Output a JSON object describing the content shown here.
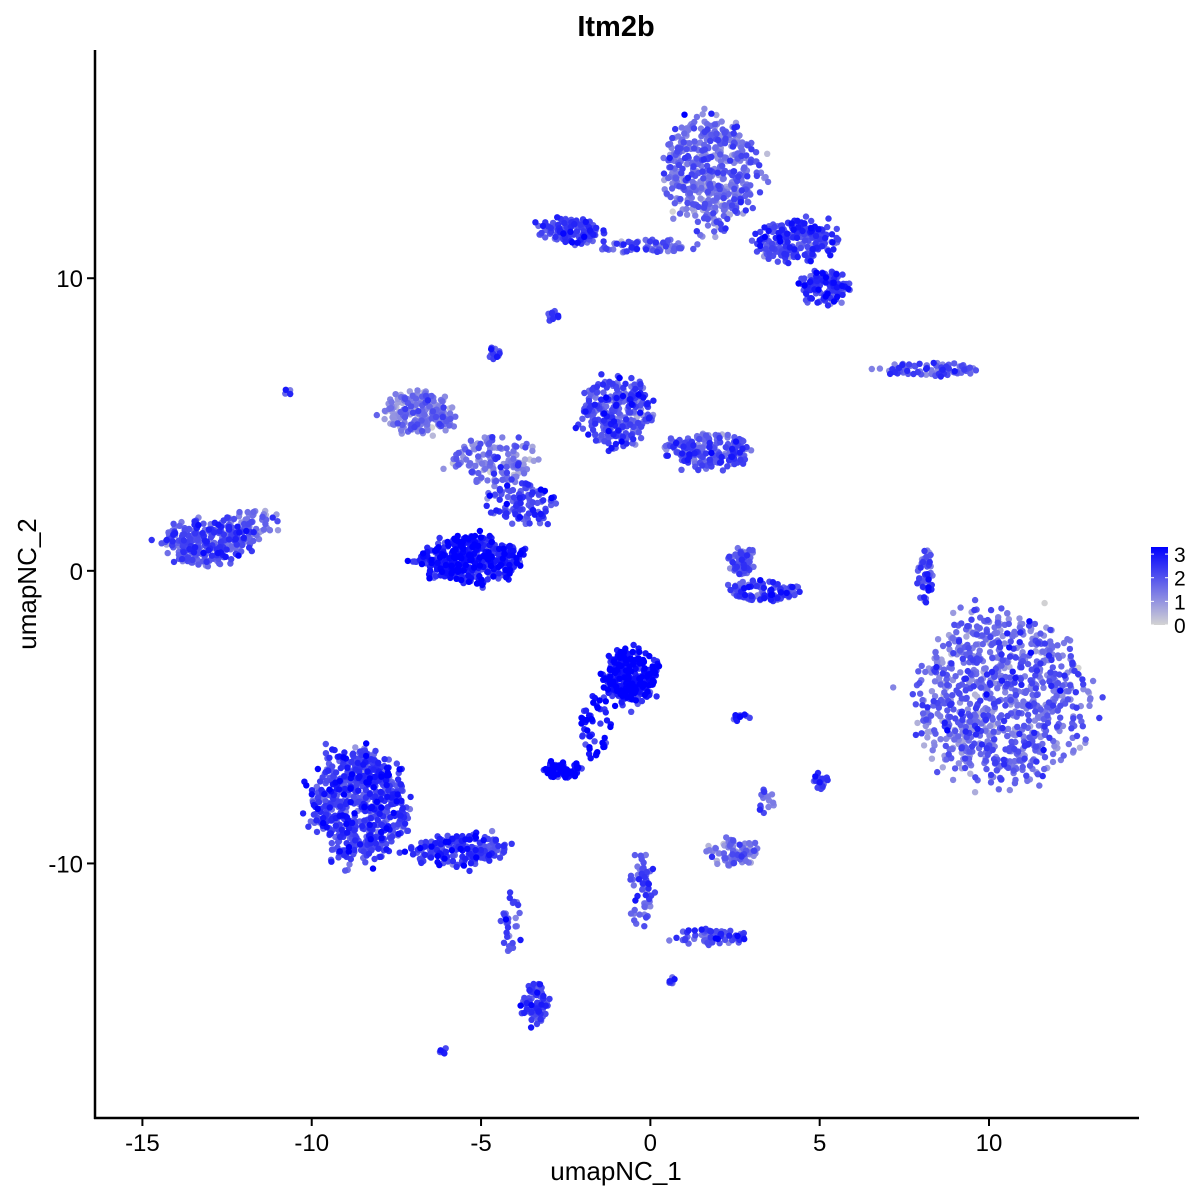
{
  "chart_data": {
    "type": "scatter",
    "title": "Itm2b",
    "xlabel": "umapNC_1",
    "ylabel": "umapNC_2",
    "xlim": [
      -16.4,
      14.4
    ],
    "ylim": [
      -18.7,
      17.8
    ],
    "xticks": [
      -15,
      -10,
      -5,
      0,
      5,
      10
    ],
    "yticks": [
      -10,
      0,
      10
    ],
    "xtick_labels": [
      "-15",
      "-10",
      "-5",
      "0",
      "5",
      "10"
    ],
    "ytick_labels": [
      "-10",
      "0",
      "10"
    ],
    "grid": false,
    "legend": {
      "placement": "right",
      "type": "colorbar",
      "low_color": "#d3d3d3",
      "high_color": "#0000ff",
      "range": [
        0,
        3.3
      ],
      "ticks": [
        0,
        1,
        2,
        3
      ],
      "tick_labels": [
        "0",
        "1",
        "2",
        "3"
      ]
    },
    "clusters": [
      {
        "cx": 1.8,
        "cy": 13.6,
        "sx": 1.2,
        "sy": 1.6,
        "n": 500,
        "expr": 1.5
      },
      {
        "cx": 4.3,
        "cy": 11.3,
        "sx": 1.0,
        "sy": 0.6,
        "n": 220,
        "expr": 2.2
      },
      {
        "cx": 5.1,
        "cy": 9.7,
        "sx": 0.6,
        "sy": 0.5,
        "n": 120,
        "expr": 2.4
      },
      {
        "cx": -2.4,
        "cy": 11.6,
        "sx": 0.8,
        "sy": 0.35,
        "n": 140,
        "expr": 2.2
      },
      {
        "cx": -0.2,
        "cy": 11.1,
        "sx": 1.3,
        "sy": 0.2,
        "n": 70,
        "expr": 1.8
      },
      {
        "cx": -2.9,
        "cy": 8.7,
        "sx": 0.15,
        "sy": 0.15,
        "n": 10,
        "expr": 2.2
      },
      {
        "cx": -6.8,
        "cy": 5.4,
        "sx": 0.9,
        "sy": 0.6,
        "n": 200,
        "expr": 1.3
      },
      {
        "cx": -4.6,
        "cy": 3.8,
        "sx": 1.0,
        "sy": 0.7,
        "n": 140,
        "expr": 1.4
      },
      {
        "cx": -1.0,
        "cy": 5.4,
        "sx": 0.9,
        "sy": 1.0,
        "n": 280,
        "expr": 2.0
      },
      {
        "cx": 1.7,
        "cy": 4.1,
        "sx": 1.1,
        "sy": 0.5,
        "n": 200,
        "expr": 1.9
      },
      {
        "cx": -4.6,
        "cy": 7.4,
        "sx": 0.15,
        "sy": 0.2,
        "n": 15,
        "expr": 2.0
      },
      {
        "cx": -5.3,
        "cy": 0.4,
        "sx": 1.3,
        "sy": 0.7,
        "n": 380,
        "expr": 2.8
      },
      {
        "cx": -3.8,
        "cy": 2.3,
        "sx": 0.9,
        "sy": 0.6,
        "n": 100,
        "expr": 2.2
      },
      {
        "cx": -13.1,
        "cy": 1.0,
        "sx": 1.1,
        "sy": 0.65,
        "n": 280,
        "expr": 2.0
      },
      {
        "cx": -11.8,
        "cy": 1.6,
        "sx": 0.7,
        "sy": 0.4,
        "n": 60,
        "expr": 1.5
      },
      {
        "cx": 2.7,
        "cy": 0.3,
        "sx": 0.3,
        "sy": 0.5,
        "n": 60,
        "expr": 1.8
      },
      {
        "cx": 3.3,
        "cy": -0.7,
        "sx": 0.9,
        "sy": 0.3,
        "n": 100,
        "expr": 2.2
      },
      {
        "cx": 10.4,
        "cy": -4.3,
        "sx": 2.1,
        "sy": 2.4,
        "n": 900,
        "expr": 1.6
      },
      {
        "cx": -0.6,
        "cy": -3.6,
        "sx": 0.7,
        "sy": 0.8,
        "n": 260,
        "expr": 3.0
      },
      {
        "cx": -1.6,
        "cy": -5.3,
        "sx": 0.4,
        "sy": 0.9,
        "n": 50,
        "expr": 3.0
      },
      {
        "cx": -2.6,
        "cy": -6.8,
        "sx": 0.45,
        "sy": 0.25,
        "n": 80,
        "expr": 3.0
      },
      {
        "cx": -8.6,
        "cy": -8.0,
        "sx": 1.2,
        "sy": 1.6,
        "n": 650,
        "expr": 2.3
      },
      {
        "cx": -5.6,
        "cy": -9.5,
        "sx": 1.2,
        "sy": 0.5,
        "n": 180,
        "expr": 2.4
      },
      {
        "cx": -4.1,
        "cy": -12.0,
        "sx": 0.25,
        "sy": 1.0,
        "n": 30,
        "expr": 2.0
      },
      {
        "cx": -3.4,
        "cy": -14.8,
        "sx": 0.3,
        "sy": 0.6,
        "n": 80,
        "expr": 2.2
      },
      {
        "cx": 2.4,
        "cy": -9.6,
        "sx": 0.6,
        "sy": 0.4,
        "n": 90,
        "expr": 1.5
      },
      {
        "cx": -0.3,
        "cy": -10.9,
        "sx": 0.3,
        "sy": 1.0,
        "n": 60,
        "expr": 1.8
      },
      {
        "cx": 1.8,
        "cy": -12.5,
        "sx": 1.0,
        "sy": 0.25,
        "n": 60,
        "expr": 2.2
      },
      {
        "cx": 8.1,
        "cy": -0.2,
        "sx": 0.2,
        "sy": 0.8,
        "n": 50,
        "expr": 2.0
      },
      {
        "cx": 8.3,
        "cy": 6.9,
        "sx": 1.1,
        "sy": 0.2,
        "n": 80,
        "expr": 1.8
      },
      {
        "cx": 5.0,
        "cy": -7.2,
        "sx": 0.2,
        "sy": 0.25,
        "n": 20,
        "expr": 2.2
      },
      {
        "cx": 2.7,
        "cy": -5.0,
        "sx": 0.25,
        "sy": 0.1,
        "n": 12,
        "expr": 2.4
      },
      {
        "cx": 0.6,
        "cy": -14.0,
        "sx": 0.1,
        "sy": 0.1,
        "n": 8,
        "expr": 2.3
      },
      {
        "cx": -6.1,
        "cy": -16.4,
        "sx": 0.15,
        "sy": 0.1,
        "n": 8,
        "expr": 2.2
      },
      {
        "cx": -10.7,
        "cy": 6.1,
        "sx": 0.1,
        "sy": 0.1,
        "n": 4,
        "expr": 1.8
      },
      {
        "cx": 3.4,
        "cy": -7.8,
        "sx": 0.2,
        "sy": 0.4,
        "n": 15,
        "expr": 1.8
      }
    ]
  }
}
